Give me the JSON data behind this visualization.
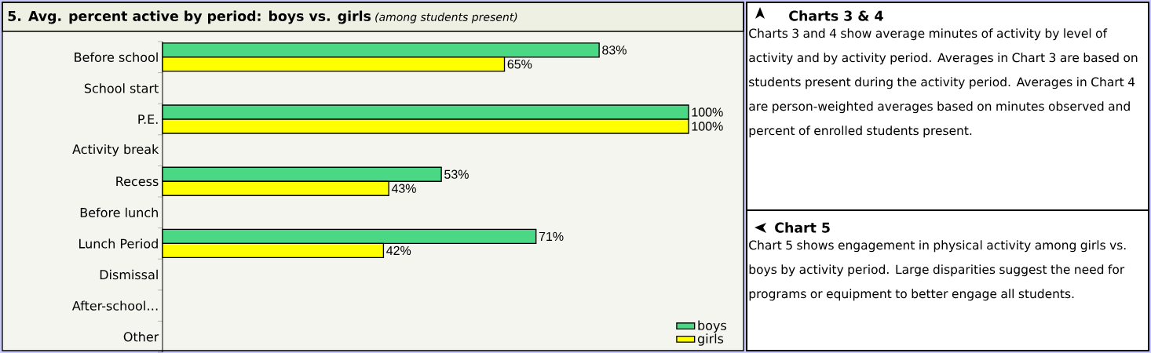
{
  "chart_data": [
    {
      "type": "bar",
      "orientation": "horizontal",
      "title": "5. Avg. percent active by period: boys vs. girls",
      "subtitle": "(among students present)",
      "categories": [
        "Before school",
        "School start",
        "P.E.",
        "Activity break",
        "Recess",
        "Before lunch",
        "Lunch Period",
        "Dismissal",
        "After-school…",
        "Other"
      ],
      "series": [
        {
          "name": "boys",
          "color": "#4ad884",
          "values": [
            83,
            null,
            100,
            null,
            53,
            null,
            71,
            null,
            null,
            null
          ],
          "value_labels": [
            "83%",
            null,
            "100%",
            null,
            "53%",
            null,
            "71%",
            null,
            null,
            null
          ]
        },
        {
          "name": "girls",
          "color": "#ffff00",
          "values": [
            65,
            null,
            100,
            null,
            43,
            null,
            42,
            null,
            null,
            null
          ],
          "value_labels": [
            "65%",
            null,
            "100%",
            null,
            "43%",
            null,
            "42%",
            null,
            null,
            null
          ]
        }
      ],
      "legend": "bottom right",
      "tick_labels": "y"
    },
    {
      "type": "other",
      "title": "Charts 3 & 4",
      "annotations": [
        "Charts 3 and 4 show average minutes of activity by level of activity and by activity period. Averages in Chart 3 are based on students present during the activity period. Averages in Chart 4 are person-weighted averages based on minutes observed and percent of enrolled students present."
      ]
    },
    {
      "type": "other",
      "title": "Chart 5",
      "annotations": [
        "Chart 5 shows engagement in physical activity among girls vs. boys by activity period. Large disparities suggest the need for programs or equipment to better engage all students."
      ]
    }
  ]
}
